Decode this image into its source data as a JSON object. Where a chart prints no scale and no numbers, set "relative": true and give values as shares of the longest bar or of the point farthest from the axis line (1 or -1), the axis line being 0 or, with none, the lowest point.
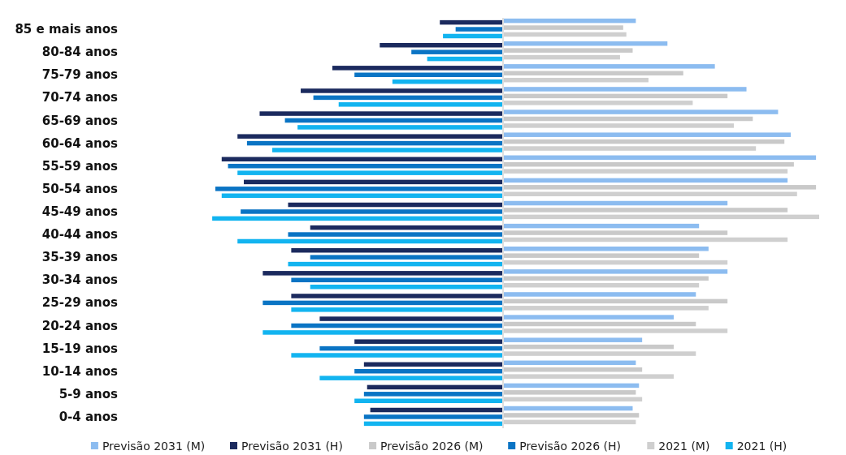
{
  "chart_data": {
    "type": "bar",
    "orientation": "horizontal",
    "relative": true,
    "legend": "bottom",
    "grid": false,
    "categories": [
      "85 e mais anos",
      "80-84 anos",
      "75-79 anos",
      "70-74 anos",
      "65-69 anos",
      "60-64 anos",
      "55-59 anos",
      "50-54 anos",
      "45-49 anos",
      "40-44 anos",
      "35-39 anos",
      "30-34 anos",
      "25-29 anos",
      "20-24 anos",
      "15-19 anos",
      "10-14 anos",
      "5-9 anos",
      "0-4 anos"
    ],
    "series": [
      {
        "name": "Previsão 2031 (M)",
        "color": "#8cbcf0",
        "values": [
          0.42,
          0.52,
          0.67,
          0.77,
          0.87,
          0.91,
          0.99,
          0.9,
          0.71,
          0.62,
          0.65,
          0.71,
          0.61,
          0.54,
          0.44,
          0.42,
          0.43,
          0.41
        ]
      },
      {
        "name": "Previsão 2031 (H)",
        "color": "#1b2a5e",
        "values": [
          -0.2,
          -0.39,
          -0.54,
          -0.64,
          -0.77,
          -0.84,
          -0.89,
          -0.82,
          -0.68,
          -0.61,
          -0.67,
          -0.76,
          -0.67,
          -0.58,
          -0.47,
          -0.44,
          -0.43,
          -0.42
        ]
      },
      {
        "name": "Previsão 2026 (M)",
        "color": "#c9c9c9",
        "values": [
          0.38,
          0.41,
          0.57,
          0.71,
          0.79,
          0.89,
          0.92,
          0.99,
          0.9,
          0.71,
          0.62,
          0.65,
          0.71,
          0.61,
          0.54,
          0.44,
          0.42,
          0.43
        ]
      },
      {
        "name": "Previsão 2026 (H)",
        "color": "#0a74c4",
        "values": [
          -0.15,
          -0.29,
          -0.47,
          -0.6,
          -0.69,
          -0.81,
          -0.87,
          -0.91,
          -0.83,
          -0.68,
          -0.61,
          -0.67,
          -0.76,
          -0.67,
          -0.58,
          -0.47,
          -0.44,
          -0.44
        ]
      },
      {
        "name": "2021 (M)",
        "color": "#cfcfcf",
        "values": [
          0.39,
          0.37,
          0.46,
          0.6,
          0.73,
          0.8,
          0.9,
          0.93,
          1,
          0.9,
          0.71,
          0.62,
          0.65,
          0.71,
          0.61,
          0.54,
          0.44,
          0.42
        ]
      },
      {
        "name": "2021 (H)",
        "color": "#12b4f0",
        "values": [
          -0.19,
          -0.24,
          -0.35,
          -0.52,
          -0.65,
          -0.73,
          -0.84,
          -0.89,
          -0.92,
          -0.84,
          -0.68,
          -0.61,
          -0.67,
          -0.76,
          -0.67,
          -0.58,
          -0.47,
          -0.44
        ]
      }
    ]
  }
}
